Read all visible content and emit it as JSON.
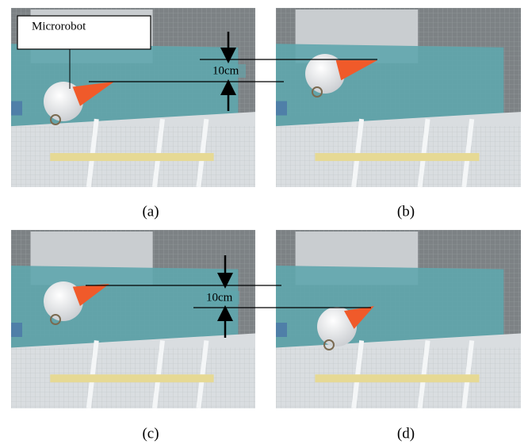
{
  "callout": "Microrobot",
  "measurements": [
    "10cm",
    "10cm"
  ],
  "captions": [
    "(a)",
    "(b)",
    "(c)",
    "(d)"
  ]
}
